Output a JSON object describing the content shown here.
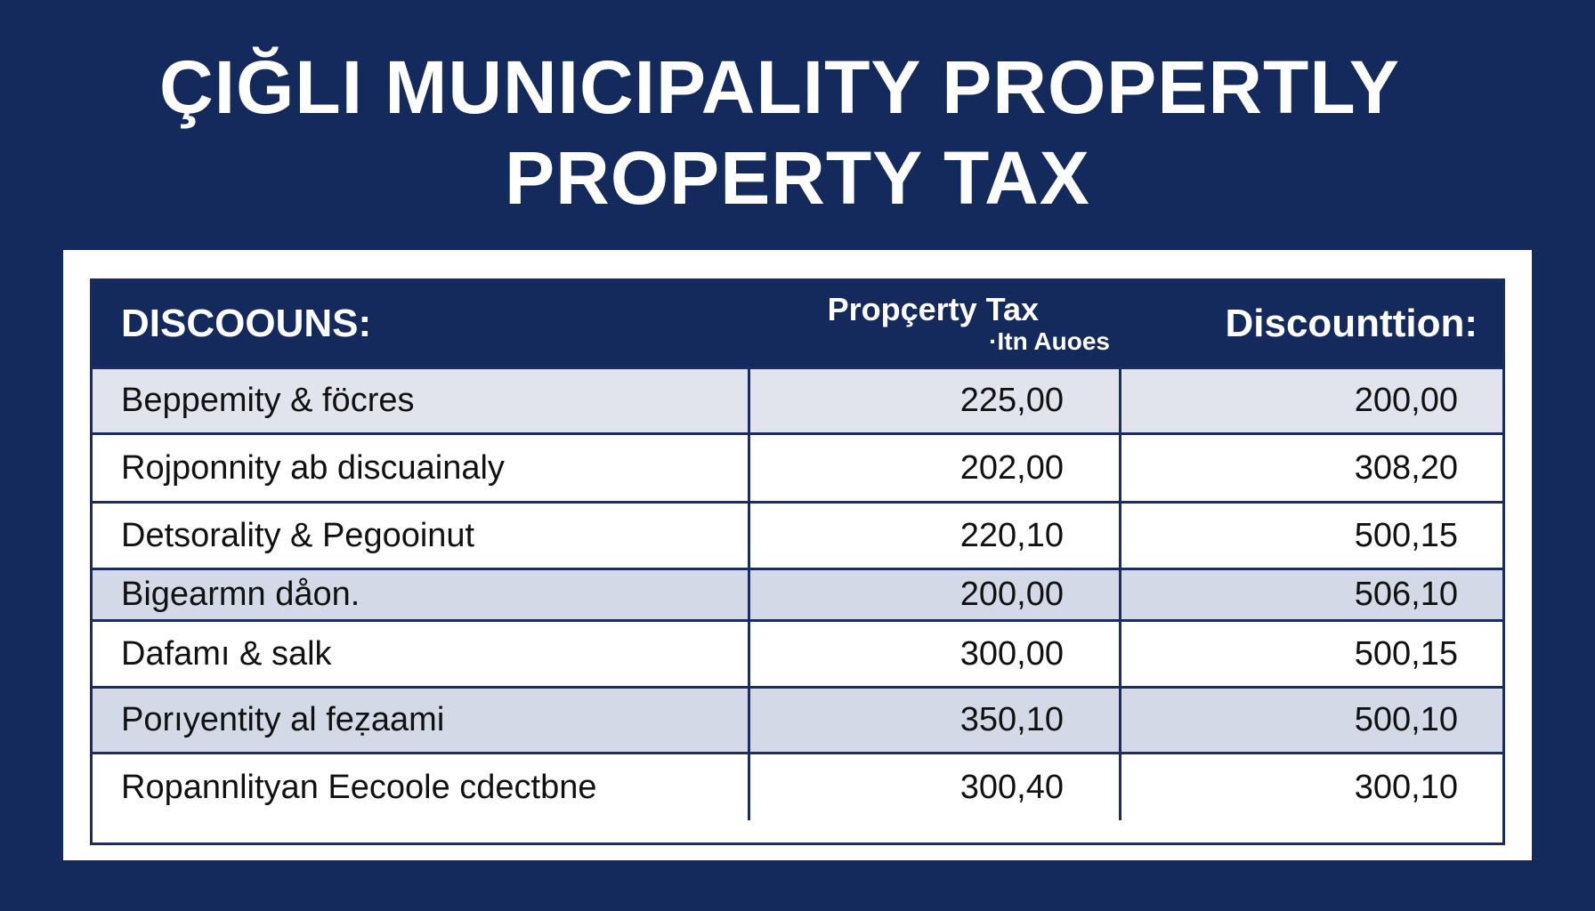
{
  "header": {
    "title": [
      "ÇIĞLI MUNICIPALITY PROPERTLY",
      "PROPERTY TAX"
    ]
  },
  "table": {
    "columns": [
      "DISCOOUNS:",
      [
        "Propçerty Tax",
        "·Itn Auoes"
      ],
      "Discounttion:"
    ],
    "rows": [
      [
        "Beppemity & föcres",
        "225,00",
        "200,00"
      ],
      [
        "Rojponnity ab discuainaly",
        "202,00",
        "308,20"
      ],
      [
        "Detsorality & Pegooinut",
        "220,10",
        "500,15"
      ],
      [
        "Bigearmn dåon.",
        "200,00",
        "506,10"
      ],
      [
        "Dafamı & salk",
        "300,00",
        "500,15"
      ],
      [
        "Porıyentity al feẓaami",
        "350,10",
        "500,10"
      ],
      [
        "Ropannlityan Eecoole cdectbne",
        "300,40",
        "300,10"
      ]
    ]
  }
}
